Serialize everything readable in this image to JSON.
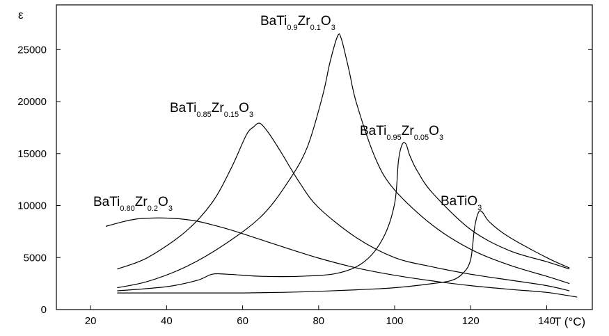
{
  "chart_data": {
    "type": "line",
    "title": "",
    "xlabel": "T (°C)",
    "ylabel": "ε",
    "xlim": [
      11,
      152
    ],
    "ylim": [
      0,
      29300
    ],
    "xticks": [
      "20",
      "40",
      "60",
      "80",
      "100",
      "120",
      "140"
    ],
    "yticks": [
      "0",
      "5000",
      "10000",
      "15000",
      "20000",
      "25000"
    ],
    "grid": false,
    "series": [
      {
        "label": {
          "base": "BaTi",
          "s1": "0.80",
          "mid": "Zr",
          "s2": "0.2",
          "end": "O",
          "s3": "3"
        },
        "x": [
          24,
          28,
          32,
          36,
          40,
          44,
          48,
          52,
          56,
          60,
          70,
          80,
          90,
          100,
          110,
          120,
          130,
          140,
          148
        ],
        "y": [
          8000,
          8400,
          8700,
          8800,
          8800,
          8700,
          8500,
          8150,
          7750,
          7300,
          6100,
          4950,
          4000,
          3300,
          2750,
          2300,
          1950,
          1650,
          1200
        ]
      },
      {
        "label": {
          "base": "BaTi",
          "s1": "0.85",
          "mid": "Zr",
          "s2": "0.15",
          "end": "O",
          "s3": "3"
        },
        "x": [
          27,
          35,
          45,
          52,
          57,
          61,
          63,
          64,
          65,
          67,
          70,
          75,
          80,
          90,
          100,
          110,
          120,
          130,
          140,
          146
        ],
        "y": [
          3900,
          5000,
          7500,
          10300,
          13600,
          16800,
          17600,
          17900,
          17800,
          16900,
          15200,
          12200,
          9800,
          6900,
          5000,
          4100,
          3400,
          2850,
          2300,
          1800
        ]
      },
      {
        "label": {
          "base": "BaTi",
          "s1": "0.9",
          "mid": "Zr",
          "s2": "0.1",
          "end": "O",
          "s3": "3"
        },
        "x": [
          27,
          35,
          45,
          55,
          65,
          72,
          77,
          81,
          83,
          85,
          86,
          88,
          90,
          95,
          100,
          110,
          120,
          130,
          140,
          146
        ],
        "y": [
          2100,
          2700,
          4100,
          6200,
          9000,
          12300,
          15600,
          20500,
          23800,
          26300,
          26000,
          23000,
          19800,
          14500,
          11500,
          8100,
          5800,
          4300,
          3200,
          2500
        ]
      },
      {
        "label": {
          "base": "BaTi",
          "s1": "0.95",
          "mid": "Zr",
          "s2": "0.05",
          "end": "O",
          "s3": "3"
        },
        "x": [
          27,
          40,
          48,
          52,
          56,
          65,
          75,
          85,
          92,
          97,
          100,
          101,
          102,
          103,
          104,
          106,
          110,
          120,
          130,
          140,
          146
        ],
        "y": [
          1800,
          2200,
          2800,
          3400,
          3400,
          3200,
          3200,
          3500,
          4600,
          6900,
          10200,
          14300,
          15900,
          15900,
          14800,
          13300,
          11200,
          7700,
          5700,
          4600,
          3900
        ]
      },
      {
        "label": {
          "base": "BaTi",
          "end": "O",
          "s3": "3"
        },
        "x": [
          27,
          40,
          50,
          60,
          70,
          80,
          90,
          100,
          110,
          115,
          118,
          120,
          121,
          122,
          123,
          125,
          130,
          140,
          146
        ],
        "y": [
          1600,
          1600,
          1600,
          1600,
          1650,
          1750,
          1900,
          2100,
          2500,
          2800,
          3500,
          4800,
          7800,
          9300,
          9400,
          8400,
          7000,
          5000,
          4000
        ]
      }
    ]
  }
}
